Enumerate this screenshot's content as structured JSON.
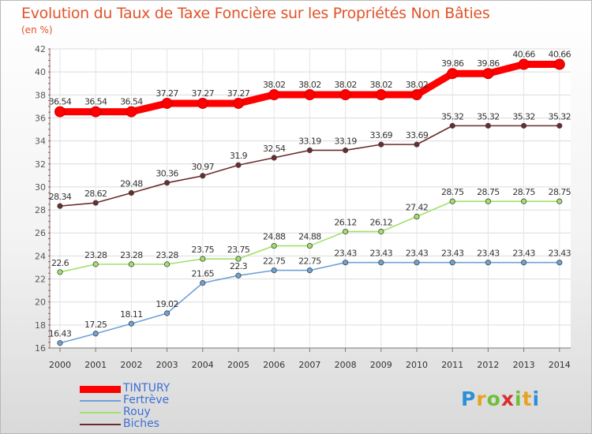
{
  "title": "Evolution du Taux de Taxe Foncière sur les Propriétés Non Bâties",
  "unit_label": "(en %)",
  "brand": {
    "letters": [
      "P",
      "r",
      "o",
      "x",
      "i",
      "t",
      "i"
    ],
    "colors": [
      "#2f8fd6",
      "#e8a21f",
      "#6fbf3a",
      "#d62f2f",
      "#6fbf3a",
      "#e8a21f",
      "#2f8fd6"
    ]
  },
  "chart_data": {
    "type": "line",
    "x": [
      "2000",
      "2001",
      "2002",
      "2003",
      "2004",
      "2005",
      "2006",
      "2007",
      "2008",
      "2009",
      "2010",
      "2011",
      "2012",
      "2013",
      "2014"
    ],
    "ylim": [
      16,
      42
    ],
    "yticks": [
      "16",
      "18",
      "20",
      "22",
      "24",
      "26",
      "28",
      "30",
      "32",
      "34",
      "36",
      "38",
      "40",
      "42"
    ],
    "grid": true,
    "legend_position": "bottom-left",
    "series": [
      {
        "name": "TINTURY",
        "color": "#ff0000",
        "values": [
          36.54,
          36.54,
          36.54,
          37.27,
          37.27,
          37.27,
          38.02,
          38.02,
          38.02,
          38.02,
          38.02,
          39.86,
          39.86,
          40.66,
          40.66
        ],
        "labels": [
          "36.54",
          "36.54",
          "36.54",
          "37.27",
          "37.27",
          "37.27",
          "38.02",
          "38.02",
          "38.02",
          "38.02",
          "38.02",
          "39.86",
          "39.86",
          "40.66",
          "40.66"
        ]
      },
      {
        "name": "Fertrève",
        "color": "#6fa1d6",
        "values": [
          16.43,
          17.25,
          18.11,
          19.02,
          21.65,
          22.3,
          22.75,
          22.75,
          23.43,
          23.43,
          23.43,
          23.43,
          23.43,
          23.43,
          23.43
        ],
        "labels": [
          "16.43",
          "17.25",
          "18.11",
          "19.02",
          "21.65",
          "22.3",
          "22.75",
          "22.75",
          "23.43",
          "23.43",
          "23.43",
          "23.43",
          "23.43",
          "23.43",
          "23.43"
        ]
      },
      {
        "name": "Rouy",
        "color": "#a3e06a",
        "values": [
          22.6,
          23.28,
          23.28,
          23.28,
          23.75,
          23.75,
          24.88,
          24.88,
          26.12,
          26.12,
          27.42,
          28.75,
          28.75,
          28.75,
          28.75
        ],
        "labels": [
          "22.6",
          "23.28",
          "23.28",
          "23.28",
          "23.75",
          "23.75",
          "24.88",
          "24.88",
          "26.12",
          "26.12",
          "27.42",
          "28.75",
          "28.75",
          "28.75",
          "28.75"
        ]
      },
      {
        "name": "Biches",
        "color": "#6b2c2c",
        "values": [
          28.34,
          28.62,
          29.48,
          30.36,
          30.97,
          31.9,
          32.54,
          33.19,
          33.19,
          33.69,
          33.69,
          35.32,
          35.32,
          35.32,
          35.32
        ],
        "labels": [
          "28.34",
          "28.62",
          "29.48",
          "30.36",
          "30.97",
          "31.9",
          "32.54",
          "33.19",
          "33.19",
          "33.69",
          "33.69",
          "35.32",
          "35.32",
          "35.32",
          "35.32"
        ]
      }
    ]
  }
}
